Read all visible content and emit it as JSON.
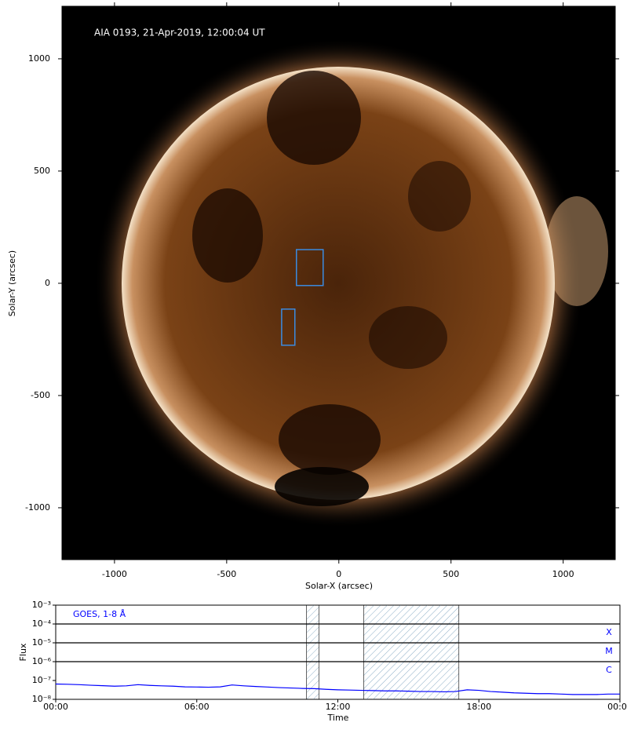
{
  "chart_data": [
    {
      "type": "image",
      "annotation": "AIA 0193, 21-Apr-2019, 12:00:04 UT",
      "xlabel": "Solar-X (arcsec)",
      "ylabel": "Solar-Y (arcsec)",
      "xlim": [
        -1234,
        1232
      ],
      "ylim": [
        -1231,
        1234
      ],
      "xticks": [
        -1000,
        -500,
        0,
        500,
        1000
      ],
      "yticks": [
        -1000,
        -500,
        0,
        500,
        1000
      ],
      "region_color": "#3b8be0",
      "regions": [
        {
          "x": [
            -189,
            -70
          ],
          "y": [
            -10,
            150
          ]
        },
        {
          "x": [
            -255,
            -196
          ],
          "y": [
            -276,
            -115
          ]
        }
      ]
    },
    {
      "type": "line",
      "log_scale": true,
      "xlabel": "Time",
      "ylabel": "Flux",
      "xlim": [
        0,
        24
      ],
      "ylim": [
        1e-08,
        0.001
      ],
      "xticks": [
        {
          "value": 0,
          "label": "00:00"
        },
        {
          "value": 6,
          "label": "06:00"
        },
        {
          "value": 12,
          "label": "12:00"
        },
        {
          "value": 18,
          "label": "18:00"
        },
        {
          "value": 24,
          "label": "00:00"
        }
      ],
      "yticks": [
        {
          "value": 1e-08,
          "label": "10⁻⁸"
        },
        {
          "value": 1e-07,
          "label": "10⁻⁷"
        },
        {
          "value": 1e-06,
          "label": "10⁻⁶"
        },
        {
          "value": 1e-05,
          "label": "10⁻⁵"
        },
        {
          "value": 0.0001,
          "label": "10⁻⁴"
        },
        {
          "value": 0.001,
          "label": "10⁻³"
        }
      ],
      "levels": [
        {
          "value": 0.0001,
          "label": "X"
        },
        {
          "value": 1e-05,
          "label": "M"
        },
        {
          "value": 1e-06,
          "label": "C"
        }
      ],
      "spans": [
        [
          10.67,
          11.2
        ],
        [
          13.1,
          17.15
        ]
      ],
      "x": [
        0,
        0.5,
        1,
        1.5,
        2,
        2.5,
        3,
        3.5,
        4,
        4.5,
        5,
        5.5,
        6,
        6.5,
        7,
        7.5,
        8,
        8.5,
        9,
        9.5,
        10,
        10.5,
        11,
        11.5,
        12,
        12.5,
        13,
        13.5,
        14,
        14.5,
        15,
        15.5,
        16,
        16.5,
        17,
        17.5,
        18,
        18.5,
        19,
        19.5,
        20,
        20.5,
        21,
        21.5,
        22,
        22.5,
        23,
        23.5,
        24
      ],
      "series": [
        {
          "name": "GOES, 1-8 Å",
          "color": "#0000ff",
          "values": [
            6.5e-08,
            6.3e-08,
            6e-08,
            5.6e-08,
            5.3e-08,
            5e-08,
            5.2e-08,
            6e-08,
            5.5e-08,
            5.2e-08,
            5e-08,
            4.6e-08,
            4.5e-08,
            4.4e-08,
            4.6e-08,
            5.8e-08,
            5.2e-08,
            4.8e-08,
            4.5e-08,
            4.2e-08,
            4e-08,
            3.8e-08,
            3.7e-08,
            3.4e-08,
            3.2e-08,
            3.1e-08,
            3e-08,
            2.9e-08,
            2.8e-08,
            2.8e-08,
            2.7e-08,
            2.6e-08,
            2.6e-08,
            2.5e-08,
            2.6e-08,
            3.2e-08,
            3e-08,
            2.6e-08,
            2.4e-08,
            2.2e-08,
            2.1e-08,
            2e-08,
            2e-08,
            1.9e-08,
            1.8e-08,
            1.8e-08,
            1.8e-08,
            1.9e-08,
            1.9e-08
          ]
        }
      ]
    }
  ]
}
